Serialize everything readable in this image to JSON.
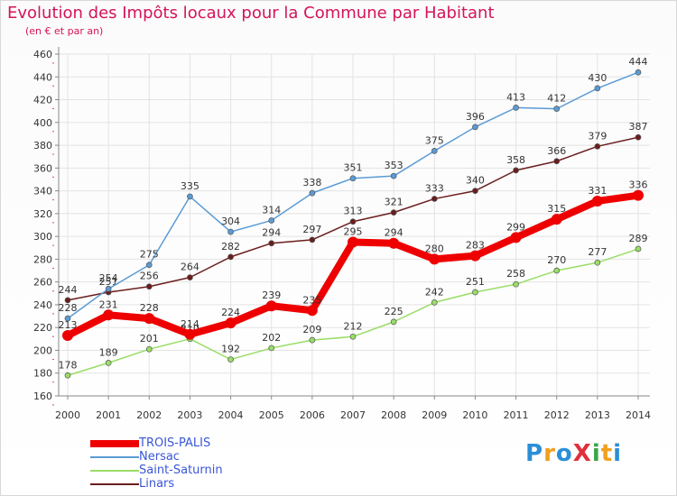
{
  "title": "Evolution des Impôts locaux pour la Commune par Habitant",
  "subtitle": "(en € et par an)",
  "logo": {
    "text": "ProXiti",
    "letters": [
      {
        "ch": "P",
        "color": "#2b8fd6"
      },
      {
        "ch": "r",
        "color": "#f0a01e"
      },
      {
        "ch": "o",
        "color": "#2b8fd6"
      },
      {
        "ch": "X",
        "color": "#e0303a"
      },
      {
        "ch": "i",
        "color": "#3aa54a"
      },
      {
        "ch": "t",
        "color": "#f0a01e"
      },
      {
        "ch": "i",
        "color": "#2b8fd6"
      }
    ]
  },
  "chart_data": {
    "type": "line",
    "categories": [
      "2000",
      "2001",
      "2002",
      "2003",
      "2004",
      "2005",
      "2006",
      "2007",
      "2008",
      "2009",
      "2010",
      "2011",
      "2012",
      "2013",
      "2014"
    ],
    "ylim": [
      160,
      460
    ],
    "yticks": [
      160,
      180,
      200,
      220,
      240,
      260,
      280,
      300,
      320,
      340,
      360,
      380,
      400,
      420,
      440,
      460
    ],
    "grid": true,
    "legend_position": "bottom-left",
    "series": [
      {
        "name": "TROIS-PALIS",
        "color": "#ee0000",
        "values": [
          213,
          231,
          228,
          214,
          224,
          239,
          235,
          295,
          294,
          280,
          283,
          299,
          315,
          331,
          336
        ]
      },
      {
        "name": "Nersac",
        "color": "#5b9bd5",
        "values": [
          228,
          254,
          275,
          335,
          304,
          314,
          338,
          351,
          353,
          375,
          396,
          413,
          412,
          430,
          444
        ]
      },
      {
        "name": "Saint-Saturnin",
        "color": "#99dd66",
        "values": [
          178,
          189,
          201,
          210,
          192,
          202,
          209,
          212,
          225,
          242,
          251,
          258,
          270,
          277,
          289
        ]
      },
      {
        "name": "Linars",
        "color": "#6b1d1d",
        "values": [
          244,
          251,
          256,
          264,
          282,
          294,
          297,
          313,
          321,
          333,
          340,
          358,
          366,
          379,
          387
        ]
      }
    ]
  }
}
